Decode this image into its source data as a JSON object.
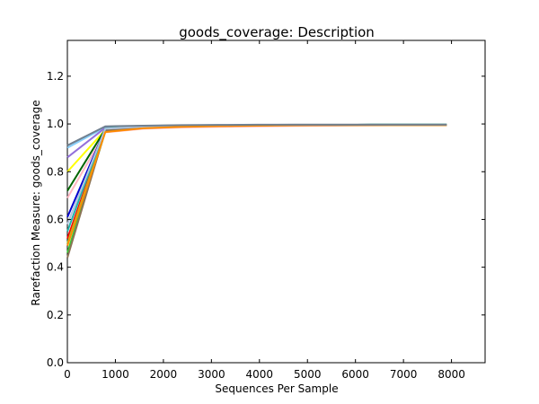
{
  "chart_data": {
    "type": "line",
    "title": "goods_coverage: Description",
    "xlabel": "Sequences Per Sample",
    "ylabel": "Rarefaction Measure: goods_coverage",
    "xlim": [
      0,
      8700
    ],
    "ylim": [
      0.0,
      1.35
    ],
    "xticks": [
      0,
      1000,
      2000,
      3000,
      4000,
      5000,
      6000,
      7000,
      8000
    ],
    "yticks": [
      0.0,
      0.2,
      0.4,
      0.6,
      0.8,
      1.0,
      1.2
    ],
    "x": [
      1,
      790,
      1580,
      2370,
      3160,
      3950,
      4740,
      5530,
      6320,
      7110,
      7900
    ],
    "series": [
      {
        "color": "#7f7f7f",
        "values": [
          0.91,
          0.988,
          0.992,
          0.994,
          0.995,
          0.996,
          0.997,
          0.997,
          0.997,
          0.997,
          0.997
        ]
      },
      {
        "color": "#87cefa",
        "values": [
          0.9,
          0.986,
          0.991,
          0.993,
          0.994,
          0.995,
          0.996,
          0.996,
          0.997,
          0.997,
          0.997
        ]
      },
      {
        "color": "#9370db",
        "values": [
          0.86,
          0.984,
          0.99,
          0.993,
          0.994,
          0.995,
          0.996,
          0.996,
          0.996,
          0.996,
          0.996
        ]
      },
      {
        "color": "#ffff00",
        "values": [
          0.8,
          0.975,
          0.986,
          0.99,
          0.992,
          0.994,
          0.995,
          0.995,
          0.996,
          0.996,
          0.996
        ]
      },
      {
        "color": "#006400",
        "values": [
          0.72,
          0.978,
          0.988,
          0.992,
          0.994,
          0.995,
          0.996,
          0.996,
          0.997,
          0.997,
          0.997
        ]
      },
      {
        "color": "#ffb6c1",
        "values": [
          0.69,
          0.965,
          0.98,
          0.985,
          0.988,
          0.99,
          0.992,
          0.993,
          0.994,
          0.995,
          0.995
        ]
      },
      {
        "color": "#0000cd",
        "values": [
          0.61,
          0.978,
          0.988,
          0.992,
          0.994,
          0.995,
          0.996,
          0.996,
          0.996,
          0.996,
          0.996
        ]
      },
      {
        "color": "#ff0000",
        "values": [
          0.52,
          0.97,
          0.985,
          0.99,
          0.992,
          0.994,
          0.995,
          0.996,
          0.996,
          0.996,
          0.996
        ]
      },
      {
        "color": "#9acd32",
        "values": [
          0.5,
          0.972,
          0.986,
          0.99,
          0.993,
          0.994,
          0.995,
          0.996,
          0.996,
          0.996,
          0.996
        ]
      },
      {
        "color": "#32cd32",
        "values": [
          0.46,
          0.968,
          0.984,
          0.989,
          0.992,
          0.994,
          0.995,
          0.995,
          0.996,
          0.996,
          0.996
        ]
      },
      {
        "color": "#8b7355",
        "values": [
          0.44,
          0.972,
          0.986,
          0.99,
          0.993,
          0.994,
          0.995,
          0.996,
          0.996,
          0.996,
          0.996
        ]
      },
      {
        "color": "#20b2aa",
        "values": [
          0.55,
          0.982,
          0.99,
          0.993,
          0.994,
          0.995,
          0.996,
          0.996,
          0.997,
          0.997,
          0.997
        ]
      },
      {
        "color": "#b0c4de",
        "values": [
          0.58,
          0.98,
          0.989,
          0.992,
          0.994,
          0.995,
          0.996,
          0.996,
          0.996,
          0.996,
          0.996
        ]
      },
      {
        "color": "#ff8c00",
        "values": [
          0.49,
          0.966,
          0.982,
          0.988,
          0.991,
          0.993,
          0.994,
          0.995,
          0.995,
          0.995,
          0.995
        ]
      },
      {
        "color": "#708090",
        "values": [
          0.91,
          0.99,
          0.993,
          0.995,
          0.996,
          0.997,
          0.997,
          0.997,
          0.997,
          0.997,
          0.997
        ]
      }
    ],
    "grid": false,
    "legend": "none"
  }
}
